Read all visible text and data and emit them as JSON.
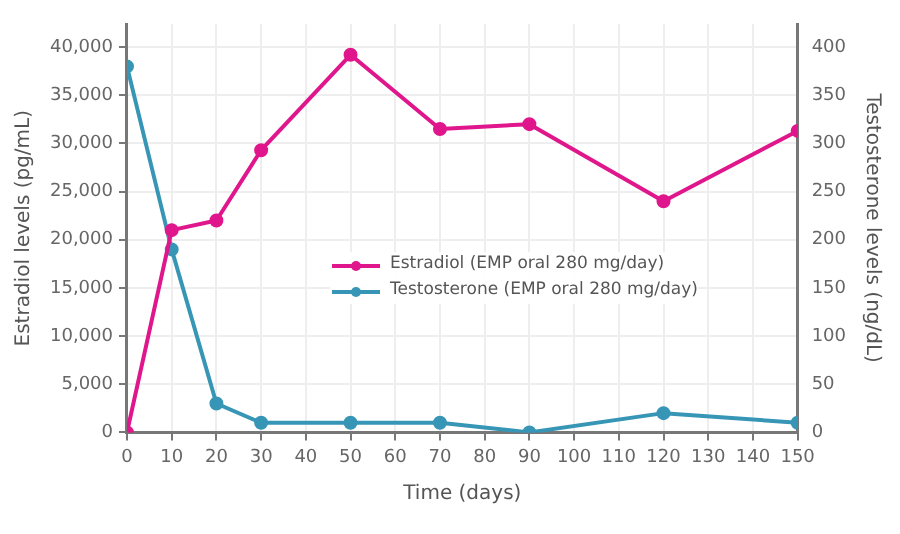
{
  "chart_data": {
    "type": "line",
    "xlabel": "Time (days)",
    "ylabel": "Estradiol levels (pg/mL)",
    "y2label": "Testosterone levels (ng/dL)",
    "x": [
      0,
      10,
      20,
      30,
      50,
      70,
      90,
      120,
      150
    ],
    "series": [
      {
        "name": "Estradiol (EMP oral 280 mg/day)",
        "color": "#e0168c",
        "values": [
          0,
          21000,
          22000,
          29300,
          39200,
          31500,
          32000,
          24000,
          31300
        ]
      },
      {
        "name": "Testosterone (EMP oral 280 mg/day)",
        "color": "#3795b5",
        "axis": "y2",
        "values": [
          380,
          190,
          30,
          10,
          10,
          10,
          0,
          20,
          10
        ]
      }
    ],
    "xlim": [
      0,
      150
    ],
    "xticks": [
      0,
      10,
      20,
      30,
      40,
      50,
      60,
      70,
      80,
      90,
      100,
      110,
      120,
      130,
      140,
      150
    ],
    "ylim": [
      0,
      42400
    ],
    "yticks": [
      0,
      {
        "value": 5000,
        "label": "5,000"
      },
      {
        "value": 10000,
        "label": "10,000"
      },
      {
        "value": 15000,
        "label": "15,000"
      },
      {
        "value": 20000,
        "label": "20,000"
      },
      {
        "value": 25000,
        "label": "25,000"
      },
      {
        "value": 30000,
        "label": "30,000"
      },
      {
        "value": 35000,
        "label": "35,000"
      },
      {
        "value": 40000,
        "label": "40,000"
      }
    ],
    "y2lim": [
      0,
      424
    ],
    "y2ticks": [
      0,
      50,
      100,
      150,
      200,
      250,
      300,
      350,
      400
    ],
    "grid": true,
    "legend": "center",
    "marker": "circle",
    "line_style": "solid"
  }
}
